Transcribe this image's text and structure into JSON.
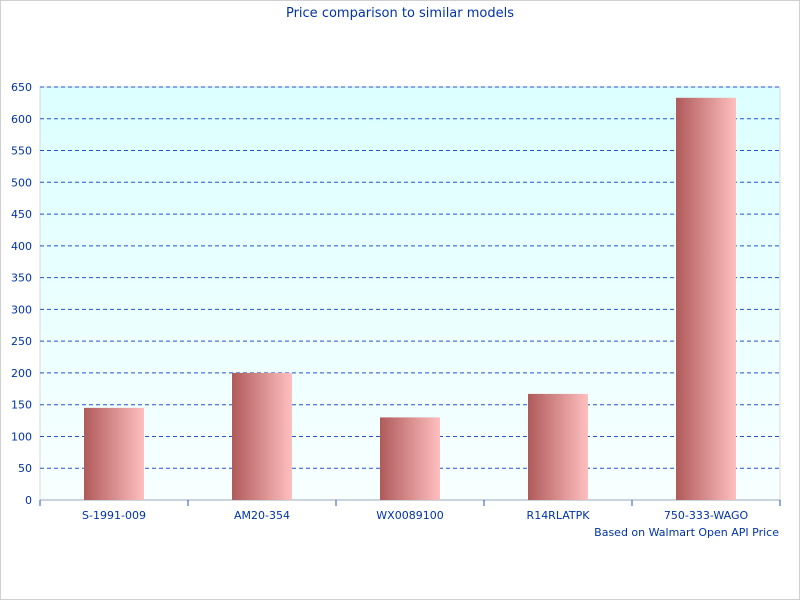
{
  "chart_data": {
    "type": "bar",
    "title": "Price comparison to similar models",
    "footnote": "Based on Walmart Open API Price",
    "categories": [
      "S-1991-009",
      "AM20-354",
      "WX0089100",
      "R14RLATPK",
      "750-333-WAGO"
    ],
    "values": [
      145,
      200,
      130,
      167,
      633
    ],
    "ylim": [
      0,
      650
    ],
    "yticks": [
      0,
      50,
      100,
      150,
      200,
      250,
      300,
      350,
      400,
      450,
      500,
      550,
      600,
      650
    ],
    "grid": true,
    "colors": {
      "bar_dark": "#b05a5a",
      "bar_light": "#ffbfbf",
      "grid": "#2255cc",
      "text": "#0033aa",
      "plot_top": "#dcffff",
      "plot_bottom": "#f8ffff"
    }
  }
}
